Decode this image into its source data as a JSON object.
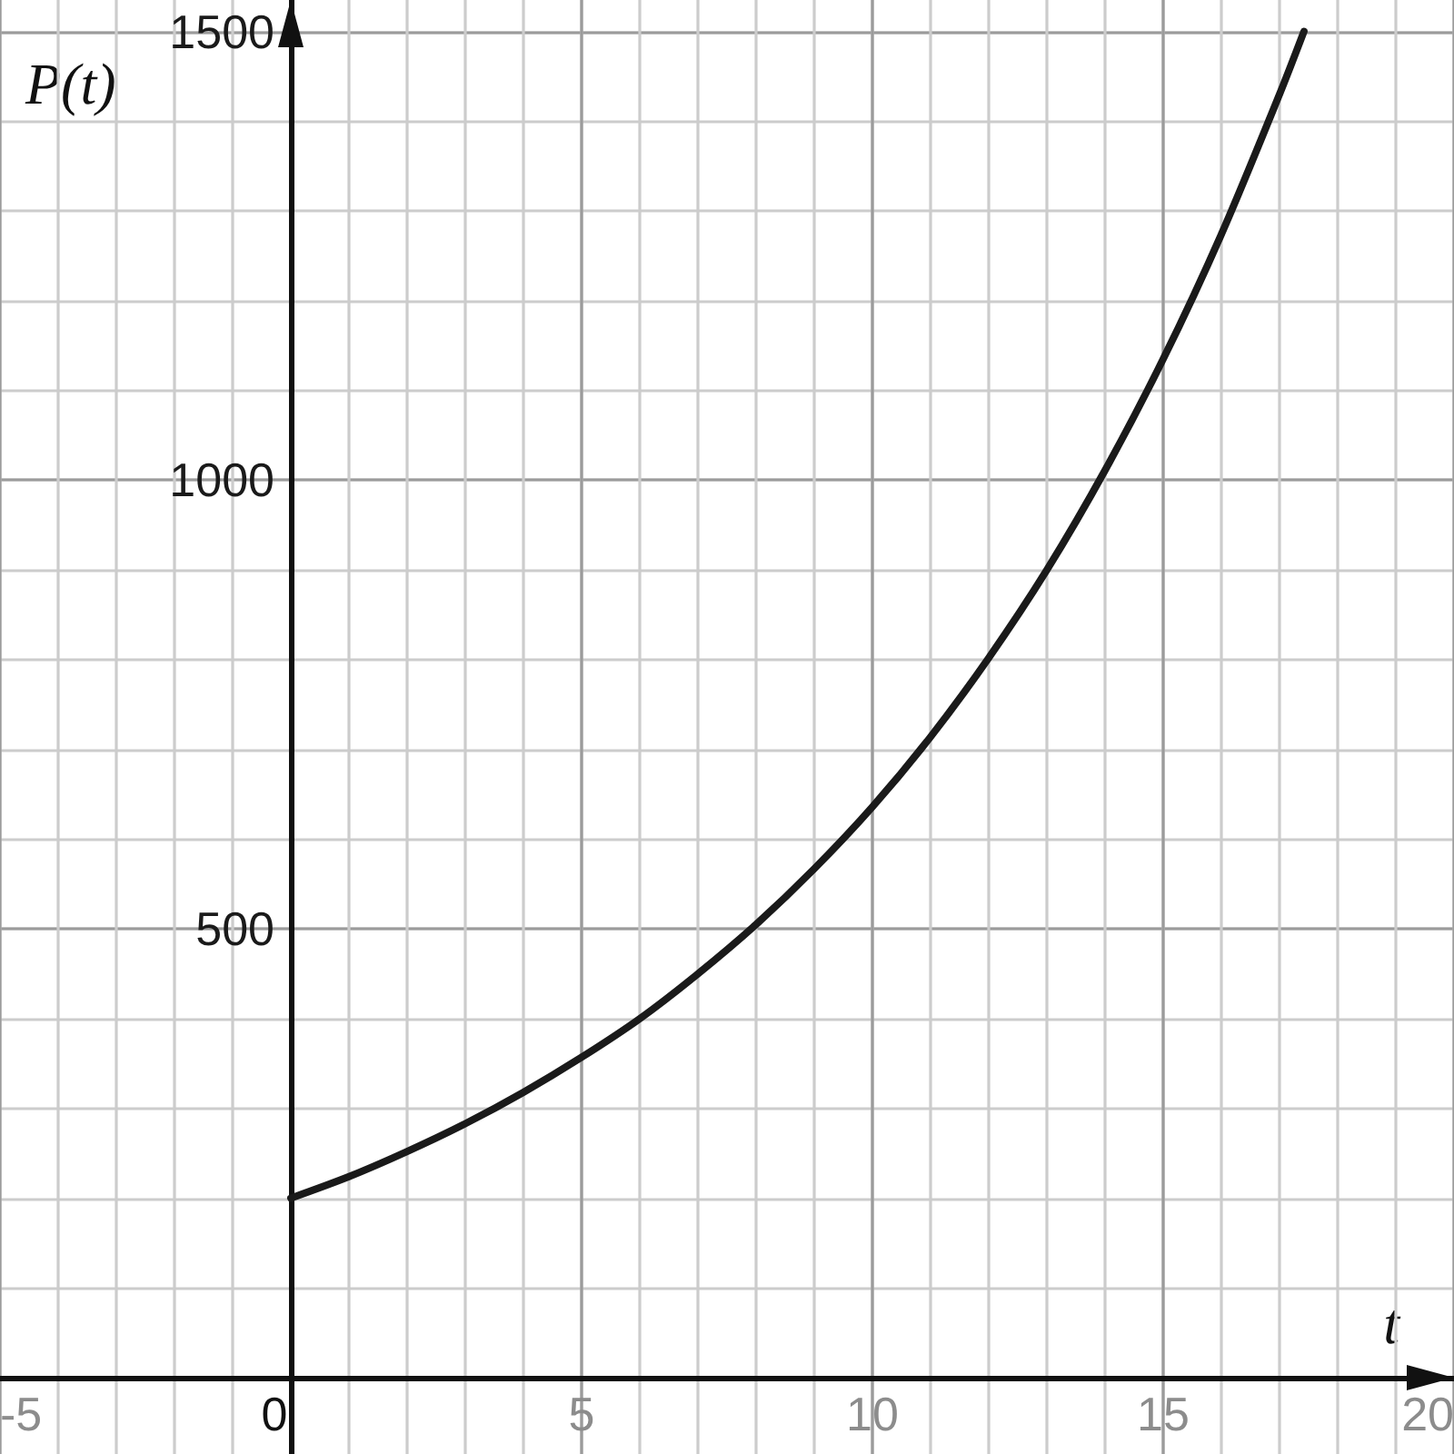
{
  "chart_data": {
    "type": "line",
    "xlabel": "t",
    "ylabel": "P(t)",
    "x": [
      0,
      1,
      2,
      3,
      4,
      5,
      6,
      7,
      8,
      9,
      10,
      11,
      12,
      13,
      14,
      15,
      16,
      17,
      17.42
    ],
    "series": [
      {
        "color": "#1a1a1a",
        "values": [
          200,
          224,
          252,
          283,
          318,
          357,
          400,
          450,
          505,
          567,
          636,
          714,
          802,
          900,
          1011,
          1135,
          1274,
          1430,
          1500
        ]
      }
    ],
    "xlim": [
      -5,
      20
    ],
    "ylim": [
      -85,
      1535
    ],
    "xticks": [
      -5,
      {
        "value": -4,
        "label": null
      },
      {
        "value": -3,
        "label": null
      },
      {
        "value": -2,
        "label": null
      },
      {
        "value": -1,
        "label": null
      },
      0,
      {
        "value": 1,
        "label": null
      },
      {
        "value": 2,
        "label": null
      },
      {
        "value": 3,
        "label": null
      },
      {
        "value": 4,
        "label": null
      },
      5,
      {
        "value": 6,
        "label": null
      },
      {
        "value": 7,
        "label": null
      },
      {
        "value": 8,
        "label": null
      },
      {
        "value": 9,
        "label": null
      },
      10,
      {
        "value": 11,
        "label": null
      },
      {
        "value": 12,
        "label": null
      },
      {
        "value": 13,
        "label": null
      },
      {
        "value": 14,
        "label": null
      },
      15,
      {
        "value": 16,
        "label": null
      },
      {
        "value": 17,
        "label": null
      },
      {
        "value": 18,
        "label": null
      },
      {
        "value": 19,
        "label": null
      },
      20
    ],
    "yticks": [
      {
        "value": 0,
        "label": null
      },
      {
        "value": 100,
        "label": null
      },
      {
        "value": 200,
        "label": null
      },
      {
        "value": 300,
        "label": null
      },
      {
        "value": 400,
        "label": null
      },
      500,
      {
        "value": 600,
        "label": null
      },
      {
        "value": 700,
        "label": null
      },
      {
        "value": 800,
        "label": null
      },
      {
        "value": 900,
        "label": null
      },
      1000,
      {
        "value": 1100,
        "label": null
      },
      {
        "value": 1200,
        "label": null
      },
      {
        "value": 1300,
        "label": null
      },
      {
        "value": 1400,
        "label": null
      },
      1500
    ],
    "grid": true,
    "marker": "none",
    "line_style": "solid"
  }
}
